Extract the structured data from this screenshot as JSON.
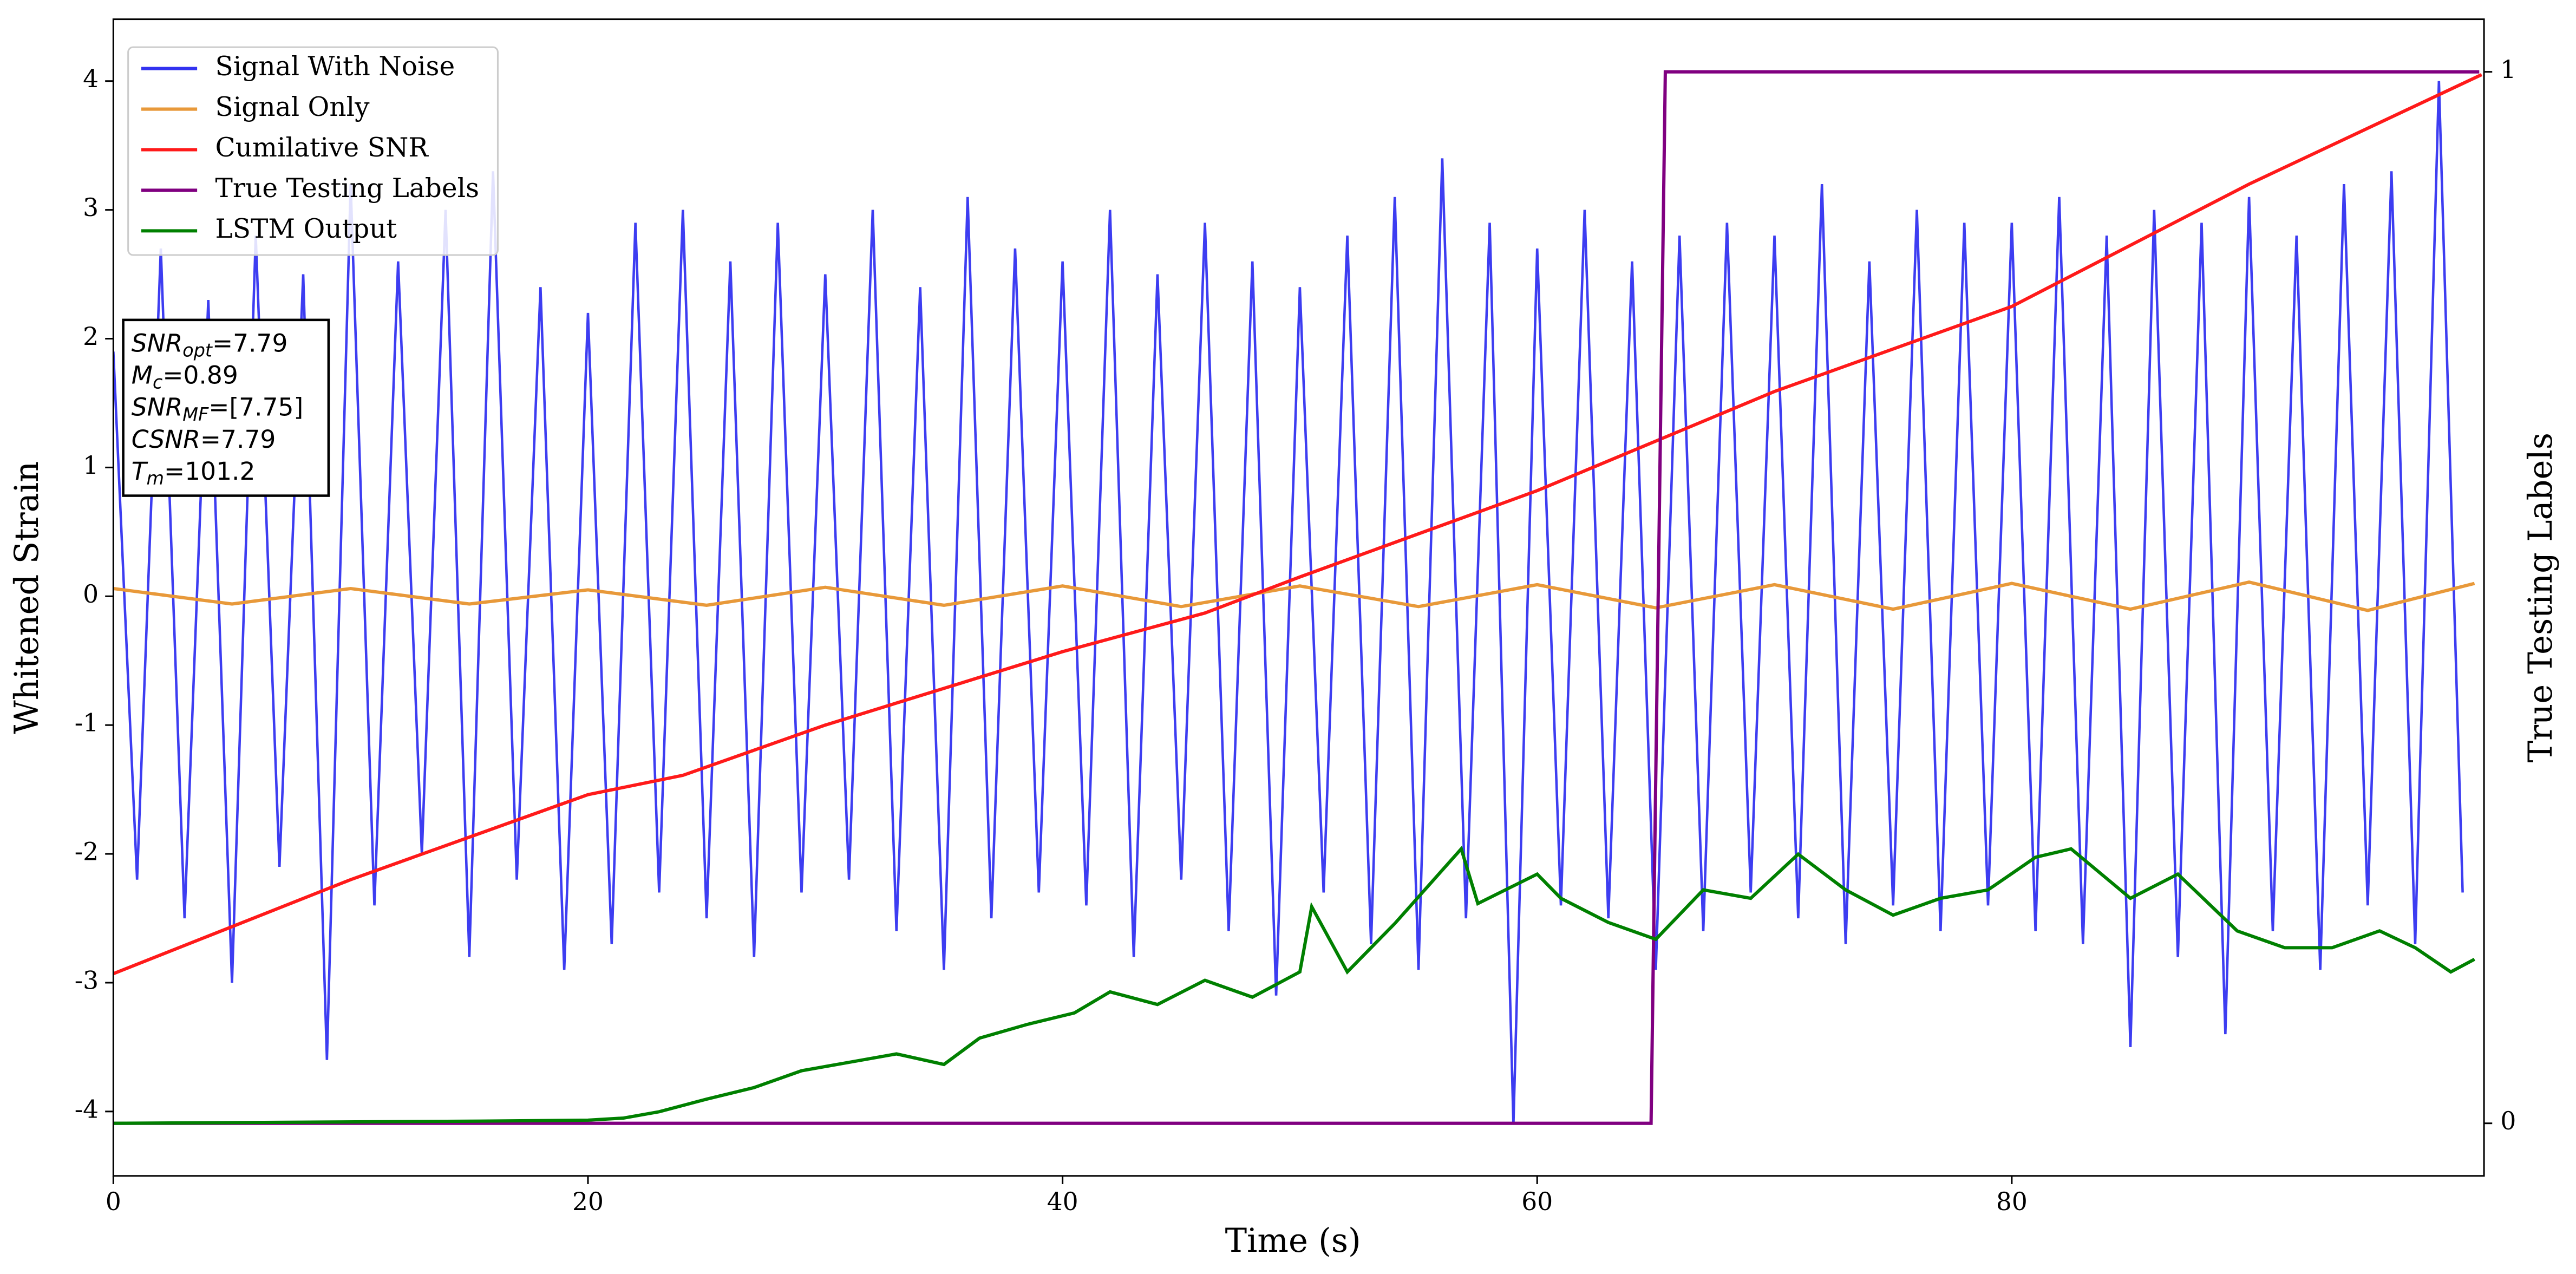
{
  "chart_data": {
    "type": "line",
    "xlabel": "Time (s)",
    "ylabel": "Whitened Strain",
    "y2label": "True Testing Labels",
    "xlim": [
      0,
      99.9
    ],
    "xticks": [
      0,
      20,
      40,
      60,
      80
    ],
    "ylim": [
      -4.5,
      4.48
    ],
    "yticks": [
      -4,
      -3,
      -2,
      -1,
      0,
      1,
      2,
      3,
      4
    ],
    "y2lim": [
      -0.05,
      1.05
    ],
    "y2ticks": [
      0,
      1
    ],
    "legend": "upper left",
    "grid": false,
    "series": [
      {
        "name": "Signal With Noise",
        "color": "#3333f0",
        "x": [
          0,
          1,
          2,
          3,
          4,
          5,
          6,
          7,
          8,
          9,
          10,
          11,
          12,
          13,
          14,
          15,
          16,
          17,
          18,
          19,
          20,
          21,
          22,
          23,
          24,
          25,
          26,
          27,
          28,
          29,
          30,
          31,
          32,
          33,
          34,
          35,
          36,
          37,
          38,
          39,
          40,
          41,
          42,
          43,
          44,
          45,
          46,
          47,
          48,
          49,
          50,
          51,
          52,
          53,
          54,
          55,
          56,
          57,
          58,
          59,
          60,
          61,
          62,
          63,
          64,
          65,
          66,
          67,
          68,
          69,
          70,
          71,
          72,
          73,
          74,
          75,
          76,
          77,
          78,
          79,
          80,
          81,
          82,
          83,
          84,
          85,
          86,
          87,
          88,
          89,
          90,
          91,
          92,
          93,
          94,
          95,
          96,
          97,
          98,
          99
        ],
        "values": [
          1.9,
          -2.2,
          2.7,
          -2.5,
          2.3,
          -3.0,
          2.8,
          -2.1,
          2.5,
          -3.6,
          3.2,
          -2.4,
          2.6,
          -2.0,
          3.0,
          -2.8,
          3.3,
          -2.2,
          2.4,
          -2.9,
          2.2,
          -2.7,
          2.9,
          -2.3,
          3.0,
          -2.5,
          2.6,
          -2.8,
          2.9,
          -2.3,
          2.5,
          -2.2,
          3.0,
          -2.6,
          2.4,
          -2.9,
          3.1,
          -2.5,
          2.7,
          -2.3,
          2.6,
          -2.4,
          3.0,
          -2.8,
          2.5,
          -2.2,
          2.9,
          -2.6,
          2.6,
          -3.1,
          2.4,
          -2.3,
          2.8,
          -2.7,
          3.1,
          -2.9,
          3.4,
          -2.5,
          2.9,
          -4.1,
          2.7,
          -2.4,
          3.0,
          -2.5,
          2.6,
          -2.9,
          2.8,
          -2.6,
          2.9,
          -2.3,
          2.8,
          -2.5,
          3.2,
          -2.7,
          2.6,
          -2.4,
          3.0,
          -2.6,
          2.9,
          -2.4,
          2.9,
          -2.6,
          3.1,
          -2.7,
          2.8,
          -3.5,
          3.0,
          -2.8,
          2.9,
          -3.4,
          3.1,
          -2.6,
          2.8,
          -2.9,
          3.2,
          -2.4,
          3.3,
          -2.7,
          4.0,
          -2.3
        ]
      },
      {
        "name": "Signal Only",
        "color": "#e8993a",
        "x": [
          0,
          5,
          10,
          15,
          20,
          25,
          30,
          35,
          40,
          45,
          50,
          55,
          60,
          65,
          70,
          75,
          80,
          85,
          90,
          95,
          99.5
        ],
        "values": [
          0.06,
          -0.06,
          0.06,
          -0.06,
          0.05,
          -0.07,
          0.07,
          -0.07,
          0.08,
          -0.08,
          0.08,
          -0.08,
          0.09,
          -0.09,
          0.09,
          -0.1,
          0.1,
          -0.1,
          0.11,
          -0.11,
          0.1
        ]
      },
      {
        "name": "Cumilative SNR",
        "color": "#ff1a1a",
        "x": [
          0,
          10,
          20,
          24,
          30,
          40,
          46,
          50,
          60,
          70,
          80,
          90,
          99.8
        ],
        "values": [
          -2.93,
          -2.2,
          -1.54,
          -1.39,
          -1.0,
          -0.43,
          -0.13,
          0.15,
          0.82,
          1.59,
          2.25,
          3.2,
          4.05
        ]
      },
      {
        "name": "True Testing Labels",
        "color": "#800080",
        "axis": "y2",
        "x": [
          0,
          64.8,
          65.4,
          99.7
        ],
        "values": [
          0,
          0,
          1,
          1
        ]
      },
      {
        "name": "LSTM Output",
        "color": "#008000",
        "axis": "y2",
        "x": [
          0,
          15,
          20,
          21.5,
          23,
          25,
          27,
          29,
          31,
          33,
          35,
          36.5,
          38.5,
          40.5,
          42,
          44,
          46,
          48,
          50,
          50.5,
          52,
          54,
          56.8,
          57.5,
          60,
          61,
          63,
          65,
          67,
          69,
          71,
          73,
          75,
          77,
          79,
          81,
          82.5,
          85,
          87,
          89.5,
          91.5,
          93.5,
          95.5,
          97,
          98.5,
          99.5
        ],
        "values": [
          0,
          0.002,
          0.003,
          0.005,
          0.011,
          0.023,
          0.034,
          0.05,
          0.058,
          0.066,
          0.056,
          0.081,
          0.094,
          0.105,
          0.125,
          0.113,
          0.136,
          0.12,
          0.144,
          0.206,
          0.144,
          0.19,
          0.261,
          0.209,
          0.237,
          0.214,
          0.191,
          0.175,
          0.222,
          0.214,
          0.256,
          0.222,
          0.198,
          0.214,
          0.222,
          0.253,
          0.261,
          0.214,
          0.237,
          0.183,
          0.167,
          0.167,
          0.183,
          0.167,
          0.144,
          0.156
        ]
      }
    ],
    "annotation": [
      {
        "symbol": "SNR",
        "subscript": "opt",
        "text": "=7.79"
      },
      {
        "symbol": "M",
        "subscript": "c",
        "text": "=0.89"
      },
      {
        "symbol": "SNR",
        "subscript": "MF",
        "text": "=[7.75]"
      },
      {
        "symbol": "CSNR",
        "text": "=7.79"
      },
      {
        "symbol": "T",
        "subscript": "m",
        "text": "=101.2"
      }
    ]
  }
}
